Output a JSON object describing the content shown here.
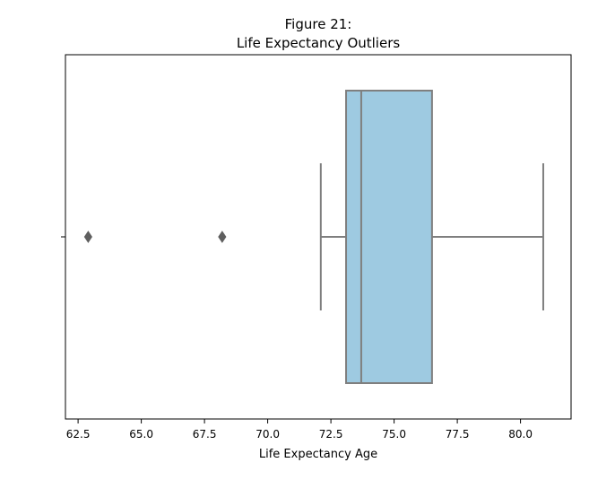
{
  "chart_data": {
    "type": "boxplot",
    "title_line1": "Figure 21:",
    "title_line2": "Life Expectancy Outliers",
    "xlabel": "Life Expectancy Age",
    "ylabel": "",
    "xlim": [
      62.0,
      82.0
    ],
    "xticks": [
      62.5,
      65.0,
      67.5,
      70.0,
      72.5,
      75.0,
      77.5,
      80.0
    ],
    "xtick_labels": [
      "62.5",
      "65.0",
      "67.5",
      "70.0",
      "72.5",
      "75.0",
      "77.5",
      "80.0"
    ],
    "grid": false,
    "box": {
      "whisker_low": 72.1,
      "q1": 73.1,
      "median": 73.7,
      "q3": 76.5,
      "whisker_high": 80.9
    },
    "outliers": [
      62.9,
      68.2
    ],
    "colors": {
      "box_fill": "#9ecae1",
      "line": "#7f7f7f",
      "outlier": "#5f5f5f"
    }
  }
}
